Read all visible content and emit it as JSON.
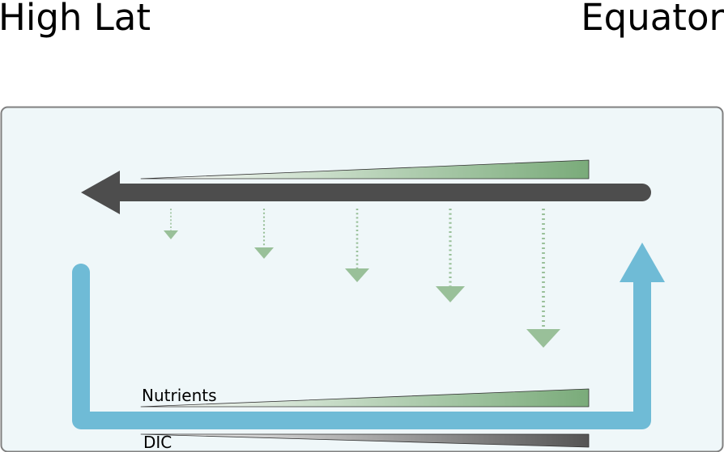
{
  "titles": {
    "left": "High Lat",
    "right": "Equator"
  },
  "labels": {
    "nutrients": "Nutrients",
    "dic": "DIC"
  },
  "colors": {
    "panel_fill": "#eff7f9",
    "panel_stroke": "#808080",
    "surface_arrow": "#4d4d4d",
    "deep_loop": "#6fbbd6",
    "sinking_flux": "#99c099",
    "nutrient_wedge_dark": "#7aab7a",
    "dic_wedge_dark": "#555555"
  },
  "sinking_flux_arrows": [
    {
      "name": "flux-1",
      "relative_magnitude": 1
    },
    {
      "name": "flux-2",
      "relative_magnitude": 2
    },
    {
      "name": "flux-3",
      "relative_magnitude": 3
    },
    {
      "name": "flux-4",
      "relative_magnitude": 4
    },
    {
      "name": "flux-5",
      "relative_magnitude": 5
    }
  ]
}
